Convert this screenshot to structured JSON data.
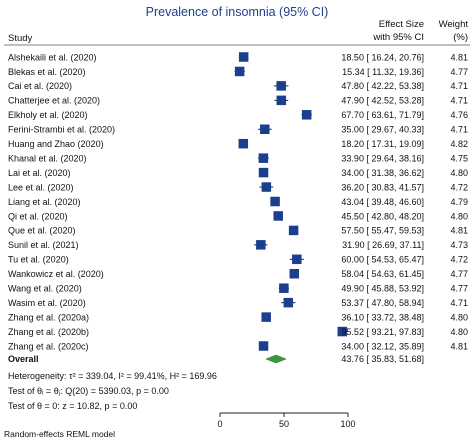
{
  "chart_data": {
    "type": "forest",
    "title": "Prevalence of insomnia (95% CI)",
    "headers": {
      "study": "Study",
      "effect_line1": "Effect Size",
      "effect_line2": "with 95% CI",
      "weight_line1": "Weight",
      "weight_line2": "(%)"
    },
    "xlim": [
      0,
      100
    ],
    "xticks": [
      0,
      50,
      100
    ],
    "colors": {
      "square": "#1b3e8f",
      "diamond": "#3a9a3a",
      "line": "#222222"
    },
    "studies": [
      {
        "name": "Alshekaili et al. (2020)",
        "es": 18.5,
        "lo": 16.24,
        "hi": 20.76,
        "ci_text": "18.50 [ 16.24, 20.76]",
        "weight": "4.81"
      },
      {
        "name": "Blekas et al. (2020)",
        "es": 15.34,
        "lo": 11.32,
        "hi": 19.36,
        "ci_text": "15.34 [ 11.32, 19.36]",
        "weight": "4.77"
      },
      {
        "name": "Cai et al. (2020)",
        "es": 47.8,
        "lo": 42.22,
        "hi": 53.38,
        "ci_text": "47.80 [ 42.22, 53.38]",
        "weight": "4.71"
      },
      {
        "name": "Chatterjee et al. (2020)",
        "es": 47.9,
        "lo": 42.52,
        "hi": 53.28,
        "ci_text": "47.90 [ 42.52, 53.28]",
        "weight": "4.71"
      },
      {
        "name": "Elkholy et al. (2020)",
        "es": 67.7,
        "lo": 63.61,
        "hi": 71.79,
        "ci_text": "67.70 [ 63.61, 71.79]",
        "weight": "4.76"
      },
      {
        "name": "Ferini-Strambi et al. (2020)",
        "es": 35.0,
        "lo": 29.67,
        "hi": 40.33,
        "ci_text": "35.00 [ 29.67, 40.33]",
        "weight": "4.71"
      },
      {
        "name": "Huang and Zhao (2020)",
        "es": 18.2,
        "lo": 17.31,
        "hi": 19.09,
        "ci_text": "18.20 [ 17.31, 19.09]",
        "weight": "4.82"
      },
      {
        "name": "Khanal  et al. (2020)",
        "es": 33.9,
        "lo": 29.64,
        "hi": 38.16,
        "ci_text": "33.90 [ 29.64, 38.16]",
        "weight": "4.75"
      },
      {
        "name": "Lai et al. (2020)",
        "es": 34.0,
        "lo": 31.38,
        "hi": 36.62,
        "ci_text": "34.00 [ 31.38, 36.62]",
        "weight": "4.80"
      },
      {
        "name": "Lee et al. (2020)",
        "es": 36.2,
        "lo": 30.83,
        "hi": 41.57,
        "ci_text": "36.20 [ 30.83, 41.57]",
        "weight": "4.72"
      },
      {
        "name": "Liang et al. (2020)",
        "es": 43.04,
        "lo": 39.48,
        "hi": 46.6,
        "ci_text": "43.04 [ 39.48, 46.60]",
        "weight": "4.79"
      },
      {
        "name": "Qi et al. (2020)",
        "es": 45.5,
        "lo": 42.8,
        "hi": 48.2,
        "ci_text": "45.50 [ 42.80, 48.20]",
        "weight": "4.80"
      },
      {
        "name": "Que et al. (2020)",
        "es": 57.5,
        "lo": 55.47,
        "hi": 59.53,
        "ci_text": "57.50 [ 55.47, 59.53]",
        "weight": "4.81"
      },
      {
        "name": "Sunil et al. (2021)",
        "es": 31.9,
        "lo": 26.69,
        "hi": 37.11,
        "ci_text": "31.90 [ 26.69, 37.11]",
        "weight": "4.73"
      },
      {
        "name": "Tu et al. (2020)",
        "es": 60.0,
        "lo": 54.53,
        "hi": 65.47,
        "ci_text": "60.00 [ 54.53, 65.47]",
        "weight": "4.72"
      },
      {
        "name": "Wankowicz et al. (2020)",
        "es": 58.04,
        "lo": 54.63,
        "hi": 61.45,
        "ci_text": "58.04 [ 54.63, 61.45]",
        "weight": "4.77"
      },
      {
        "name": "Wang et al. (2020)",
        "es": 49.9,
        "lo": 45.88,
        "hi": 53.92,
        "ci_text": "49.90 [ 45.88, 53.92]",
        "weight": "4.77"
      },
      {
        "name": "Wasim et al. (2020)",
        "es": 53.37,
        "lo": 47.8,
        "hi": 58.94,
        "ci_text": "53.37 [ 47.80, 58.94]",
        "weight": "4.71"
      },
      {
        "name": "Zhang et al. (2020a)",
        "es": 36.1,
        "lo": 33.72,
        "hi": 38.48,
        "ci_text": "36.10 [ 33.72, 38.48]",
        "weight": "4.80"
      },
      {
        "name": "Zhang et al. (2020b)",
        "es": 95.52,
        "lo": 93.21,
        "hi": 97.83,
        "ci_text": "95.52 [ 93.21, 97.83]",
        "weight": "4.80"
      },
      {
        "name": "Zhang et al. (2020c)",
        "es": 34.0,
        "lo": 32.12,
        "hi": 35.89,
        "ci_text": "34.00 [ 32.12, 35.89]",
        "weight": "4.81"
      }
    ],
    "overall": {
      "name": "Overall",
      "es": 43.76,
      "lo": 35.83,
      "hi": 51.68,
      "ci_text": "43.76 [ 35.83, 51.68]"
    },
    "heterogeneity": "Heterogeneity: τ² = 339.04, I² = 99.41%, H² = 169.96",
    "test_equal": "Test of θᵢ = θⱼ: Q(20) = 5390.03, p = 0.00",
    "test_zero": "Test of θ = 0: z = 10.82, p = 0.00",
    "footer": "Random-effects REML model"
  }
}
